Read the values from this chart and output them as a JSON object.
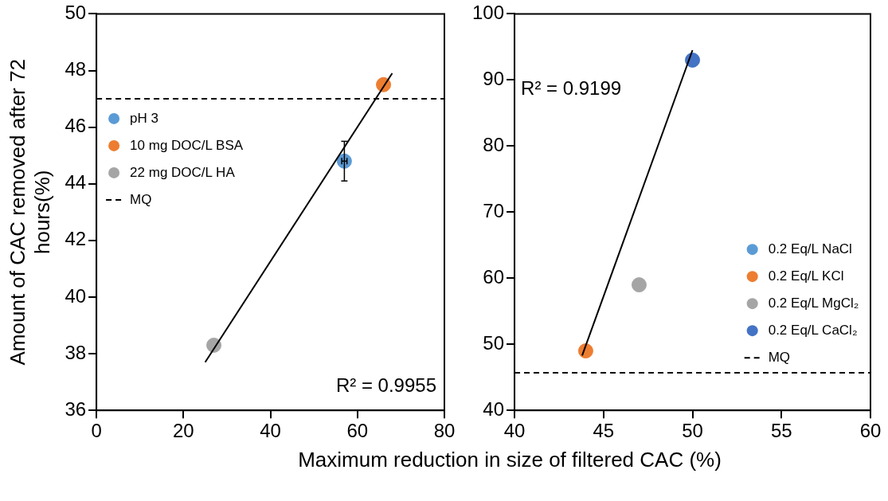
{
  "chart_data": [
    {
      "type": "scatter",
      "xlabel": "Maximum reduction in size of filtered CAC (%)",
      "ylabel": "Amount of CAC removed after 72 hours(%)",
      "xlim": [
        0,
        80
      ],
      "xticks": [
        0,
        20,
        40,
        60,
        80
      ],
      "ylim": [
        36,
        50
      ],
      "yticks": [
        36,
        38,
        40,
        42,
        44,
        46,
        48,
        50
      ],
      "grid": false,
      "legend": "left",
      "marker": "circle",
      "series": [
        {
          "name": "pH 3",
          "color": "#5b9bd5",
          "x": [
            57
          ],
          "values": [
            44.8
          ],
          "errors": [
            0.7
          ],
          "xerrors": [
            0.6
          ]
        },
        {
          "name": "10 mg DOC/L BSA",
          "color": "#ed7d31",
          "x": [
            66
          ],
          "values": [
            47.5
          ]
        },
        {
          "name": "22 mg DOC/L HA",
          "color": "#a5a5a5",
          "x": [
            27
          ],
          "values": [
            38.3
          ]
        },
        {
          "type": "line",
          "color": "#000000",
          "marker": "none",
          "x": [
            25,
            68
          ],
          "values": [
            37.7,
            47.9
          ]
        }
      ],
      "ref_lines": [
        {
          "axis": "y",
          "value": 47,
          "label": "MQ",
          "color": "#000000",
          "line_style": "dashed"
        }
      ],
      "annotations": [
        "R² = 0.9955"
      ]
    },
    {
      "type": "scatter",
      "xlim": [
        40,
        60
      ],
      "xticks": [
        40,
        45,
        50,
        55,
        60
      ],
      "ylim": [
        40,
        100
      ],
      "yticks": [
        40,
        50,
        60,
        70,
        80,
        90,
        100
      ],
      "grid": false,
      "legend": "right",
      "marker": "circle",
      "series": [
        {
          "name": "0.2 Eq/L NaCl",
          "color": "#5b9bd5",
          "values": [
            null
          ]
        },
        {
          "name": "0.2 Eq/L KCl",
          "color": "#ed7d31",
          "x": [
            44
          ],
          "values": [
            49
          ]
        },
        {
          "name": "0.2 Eq/L MgCl₂",
          "color": "#a5a5a5",
          "x": [
            47
          ],
          "values": [
            59
          ]
        },
        {
          "name": "0.2 Eq/L CaCl₂",
          "color": "#4472c4",
          "x": [
            50
          ],
          "values": [
            93
          ]
        },
        {
          "type": "line",
          "color": "#000000",
          "marker": "none",
          "x": [
            43.8,
            50
          ],
          "values": [
            48.3,
            94.5
          ]
        }
      ],
      "ref_lines": [
        {
          "axis": "y",
          "value": 45.7,
          "label": "MQ",
          "color": "#000000",
          "line_style": "dashed"
        }
      ],
      "annotations": [
        "R² = 0.9199"
      ]
    }
  ]
}
